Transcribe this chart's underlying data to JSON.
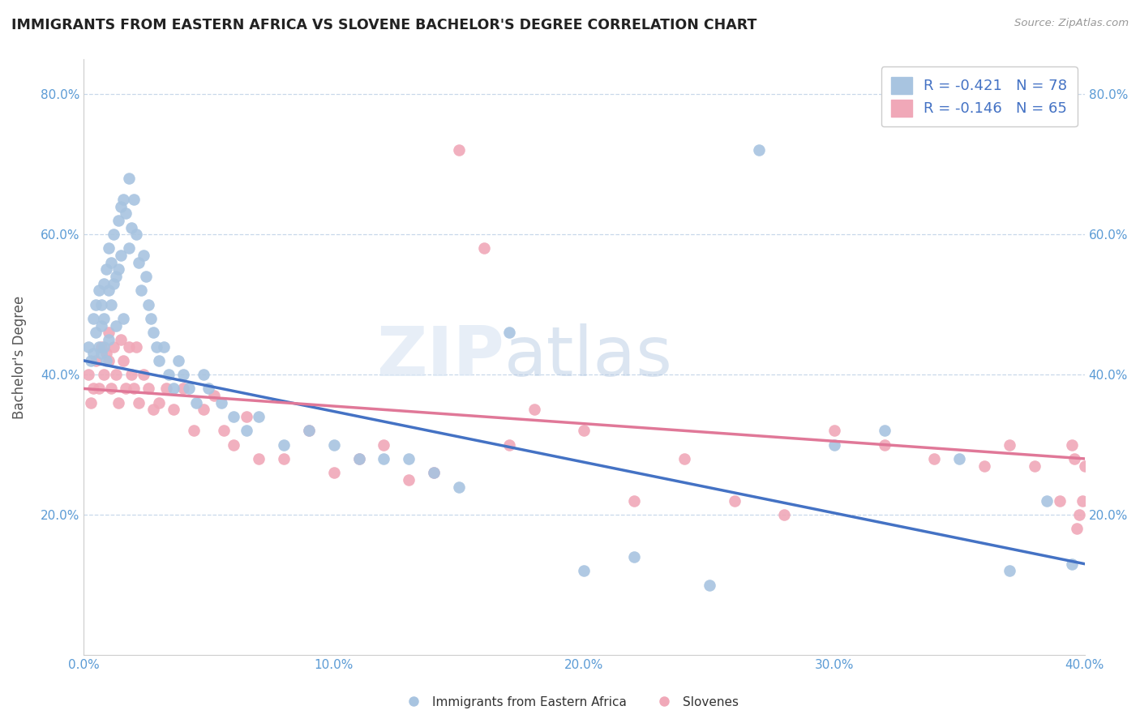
{
  "title": "IMMIGRANTS FROM EASTERN AFRICA VS SLOVENE BACHELOR'S DEGREE CORRELATION CHART",
  "source_text": "Source: ZipAtlas.com",
  "ylabel": "Bachelor's Degree",
  "xlim": [
    0.0,
    0.4
  ],
  "ylim": [
    0.0,
    0.85
  ],
  "xticks": [
    0.0,
    0.1,
    0.2,
    0.3,
    0.4
  ],
  "yticks": [
    0.2,
    0.4,
    0.6,
    0.8
  ],
  "xticklabels": [
    "0.0%",
    "10.0%",
    "20.0%",
    "30.0%",
    "40.0%"
  ],
  "yticklabels": [
    "20.0%",
    "40.0%",
    "60.0%",
    "80.0%"
  ],
  "blue_color": "#a8c4e0",
  "pink_color": "#f0a8b8",
  "blue_line_color": "#4472c4",
  "pink_line_color": "#e07898",
  "legend_blue_label": "R = -0.421   N = 78",
  "legend_pink_label": "R = -0.146   N = 65",
  "watermark_zip": "ZIP",
  "watermark_atlas": "atlas",
  "blue_scatter_x": [
    0.002,
    0.003,
    0.004,
    0.004,
    0.005,
    0.005,
    0.006,
    0.006,
    0.007,
    0.007,
    0.007,
    0.008,
    0.008,
    0.008,
    0.009,
    0.009,
    0.01,
    0.01,
    0.01,
    0.011,
    0.011,
    0.012,
    0.012,
    0.013,
    0.013,
    0.014,
    0.014,
    0.015,
    0.015,
    0.016,
    0.016,
    0.017,
    0.018,
    0.018,
    0.019,
    0.02,
    0.021,
    0.022,
    0.023,
    0.024,
    0.025,
    0.026,
    0.027,
    0.028,
    0.029,
    0.03,
    0.032,
    0.034,
    0.036,
    0.038,
    0.04,
    0.042,
    0.045,
    0.048,
    0.05,
    0.055,
    0.06,
    0.065,
    0.07,
    0.08,
    0.09,
    0.1,
    0.11,
    0.12,
    0.13,
    0.14,
    0.15,
    0.17,
    0.2,
    0.22,
    0.25,
    0.27,
    0.3,
    0.32,
    0.35,
    0.37,
    0.385,
    0.395
  ],
  "blue_scatter_y": [
    0.44,
    0.42,
    0.48,
    0.43,
    0.5,
    0.46,
    0.52,
    0.44,
    0.5,
    0.47,
    0.43,
    0.53,
    0.48,
    0.44,
    0.55,
    0.42,
    0.58,
    0.52,
    0.45,
    0.56,
    0.5,
    0.6,
    0.53,
    0.54,
    0.47,
    0.62,
    0.55,
    0.64,
    0.57,
    0.65,
    0.48,
    0.63,
    0.68,
    0.58,
    0.61,
    0.65,
    0.6,
    0.56,
    0.52,
    0.57,
    0.54,
    0.5,
    0.48,
    0.46,
    0.44,
    0.42,
    0.44,
    0.4,
    0.38,
    0.42,
    0.4,
    0.38,
    0.36,
    0.4,
    0.38,
    0.36,
    0.34,
    0.32,
    0.34,
    0.3,
    0.32,
    0.3,
    0.28,
    0.28,
    0.28,
    0.26,
    0.24,
    0.46,
    0.12,
    0.14,
    0.1,
    0.72,
    0.3,
    0.32,
    0.28,
    0.12,
    0.22,
    0.13
  ],
  "pink_scatter_x": [
    0.002,
    0.003,
    0.004,
    0.005,
    0.006,
    0.007,
    0.008,
    0.009,
    0.01,
    0.01,
    0.011,
    0.012,
    0.013,
    0.014,
    0.015,
    0.016,
    0.017,
    0.018,
    0.019,
    0.02,
    0.021,
    0.022,
    0.024,
    0.026,
    0.028,
    0.03,
    0.033,
    0.036,
    0.04,
    0.044,
    0.048,
    0.052,
    0.056,
    0.06,
    0.065,
    0.07,
    0.08,
    0.09,
    0.1,
    0.11,
    0.12,
    0.13,
    0.14,
    0.15,
    0.16,
    0.17,
    0.18,
    0.2,
    0.22,
    0.24,
    0.26,
    0.28,
    0.3,
    0.32,
    0.34,
    0.36,
    0.37,
    0.38,
    0.39,
    0.395,
    0.396,
    0.397,
    0.398,
    0.399,
    0.4
  ],
  "pink_scatter_y": [
    0.4,
    0.36,
    0.38,
    0.42,
    0.38,
    0.44,
    0.4,
    0.43,
    0.46,
    0.42,
    0.38,
    0.44,
    0.4,
    0.36,
    0.45,
    0.42,
    0.38,
    0.44,
    0.4,
    0.38,
    0.44,
    0.36,
    0.4,
    0.38,
    0.35,
    0.36,
    0.38,
    0.35,
    0.38,
    0.32,
    0.35,
    0.37,
    0.32,
    0.3,
    0.34,
    0.28,
    0.28,
    0.32,
    0.26,
    0.28,
    0.3,
    0.25,
    0.26,
    0.72,
    0.58,
    0.3,
    0.35,
    0.32,
    0.22,
    0.28,
    0.22,
    0.2,
    0.32,
    0.3,
    0.28,
    0.27,
    0.3,
    0.27,
    0.22,
    0.3,
    0.28,
    0.18,
    0.2,
    0.22,
    0.27
  ],
  "blue_line_x": [
    0.0,
    0.4
  ],
  "blue_line_y": [
    0.42,
    0.13
  ],
  "pink_line_x": [
    0.0,
    0.4
  ],
  "pink_line_y": [
    0.38,
    0.28
  ]
}
